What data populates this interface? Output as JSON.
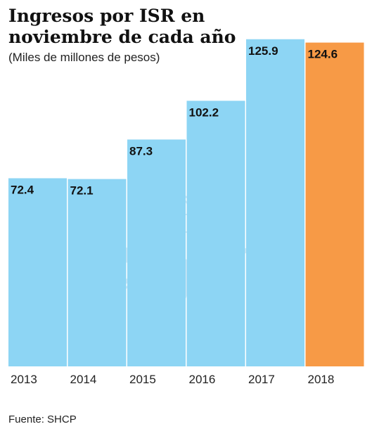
{
  "title": "Ingresos por ISR en noviembre de cada año",
  "subtitle": "(Miles de millones de pesos)",
  "source": "Fuente: SHCP",
  "colors": {
    "bar": "#8dd5f4",
    "highlight": "#f79a46",
    "watermark": "#7fbfdf"
  },
  "chart_data": {
    "type": "bar",
    "title": "Ingresos por ISR en noviembre de cada año",
    "subtitle": "(Miles de millones de pesos)",
    "xlabel": "",
    "ylabel": "",
    "categories": [
      "2013",
      "2014",
      "2015",
      "2016",
      "2017",
      "2018"
    ],
    "values": [
      72.4,
      72.1,
      87.3,
      102.2,
      125.9,
      124.6
    ],
    "data_labels": [
      "72.4",
      "72.1",
      "87.3",
      "102.2",
      "125.9",
      "124.6"
    ],
    "highlighted_category": "2018",
    "ylim": [
      0,
      128
    ],
    "grid": false,
    "legend": "none"
  }
}
